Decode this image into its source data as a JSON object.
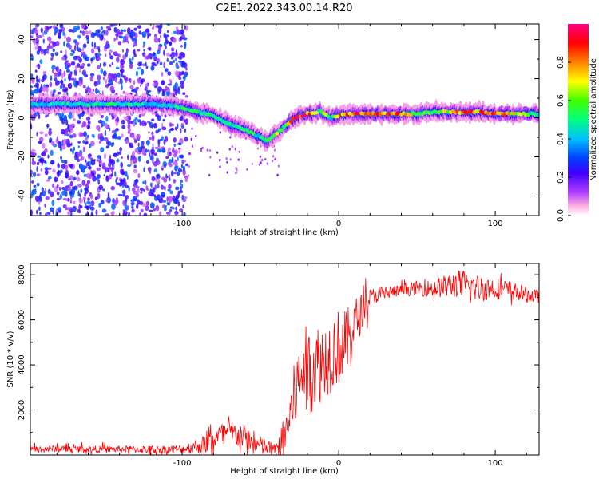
{
  "title": "C2E1.2022.343.00.14.R20",
  "chart_data": [
    {
      "type": "heatmap",
      "xlabel": "Height of straight line (km)",
      "ylabel": "Frequency (Hz)",
      "xlim": [
        -197,
        128
      ],
      "ylim": [
        -50,
        48
      ],
      "xticks": [
        -100,
        0,
        100
      ],
      "yticks": [
        -40,
        -20,
        0,
        20,
        40
      ],
      "grid": false,
      "colorbar": {
        "label": "Normalized spectral amplitude",
        "range": [
          0,
          1
        ],
        "ticks": [
          0.0,
          0.2,
          0.4,
          0.6,
          0.8
        ],
        "tick_labels": [
          "0.0",
          "0.2",
          "0.4",
          "0.6",
          "0.8"
        ],
        "colormap": [
          "#ffffff",
          "#ff80c0",
          "#8000ff",
          "#0000ff",
          "#00c0ff",
          "#00ff80",
          "#80ff00",
          "#ffff00",
          "#ff8000",
          "#ff0000",
          "#ff0080"
        ]
      },
      "ridge": {
        "x": [
          -197,
          -180,
          -160,
          -140,
          -120,
          -105,
          -100,
          -90,
          -80,
          -70,
          -60,
          -50,
          -45,
          -40,
          -35,
          -30,
          -25,
          -20,
          -15,
          -12,
          -10,
          -5,
          0,
          5,
          10,
          20,
          30,
          40,
          50,
          60,
          70,
          80,
          90,
          100,
          110,
          128
        ],
        "y": [
          7,
          7,
          7,
          7,
          7,
          6,
          5,
          3,
          1,
          -3,
          -6,
          -10,
          -12,
          -8,
          -5,
          -1,
          1,
          2,
          2,
          4,
          2,
          0,
          1,
          2,
          2,
          2,
          2,
          2,
          2,
          3,
          3,
          3,
          3,
          2,
          2,
          2
        ],
        "amplitude": [
          0.45,
          0.45,
          0.5,
          0.5,
          0.45,
          0.45,
          0.55,
          0.55,
          0.55,
          0.5,
          0.55,
          0.5,
          0.6,
          0.8,
          0.55,
          0.9,
          0.9,
          0.95,
          0.85,
          0.55,
          0.85,
          0.5,
          0.85,
          0.9,
          0.9,
          0.9,
          0.9,
          0.85,
          0.65,
          0.6,
          0.7,
          0.85,
          0.85,
          0.9,
          0.8,
          0.5
        ]
      },
      "noise_region": {
        "x_range": [
          -197,
          -97
        ],
        "amplitude": 0.3
      }
    },
    {
      "type": "line",
      "xlabel": "Height of straight line (km)",
      "ylabel": "SNR (10 * v/v)",
      "xlim": [
        -197,
        128
      ],
      "ylim": [
        0,
        8500
      ],
      "xticks": [
        -100,
        0,
        100
      ],
      "yticks": [
        2000,
        4000,
        6000,
        8000
      ],
      "grid": false,
      "series": [
        {
          "color": "#ff0000",
          "envelope": {
            "x": [
              -197,
              -180,
              -160,
              -140,
              -120,
              -100,
              -90,
              -85,
              -80,
              -75,
              -70,
              -65,
              -60,
              -55,
              -50,
              -45,
              -40,
              -35,
              -30,
              -27,
              -25,
              -22,
              -20,
              -15,
              -10,
              -5,
              0,
              5,
              10,
              15,
              20,
              30,
              40,
              50,
              60,
              70,
              75,
              80,
              90,
              100,
              110,
              120,
              128
            ],
            "y": [
              250,
              280,
              260,
              250,
              240,
              250,
              400,
              500,
              700,
              900,
              1000,
              900,
              800,
              500,
              400,
              300,
              200,
              800,
              2000,
              3000,
              3200,
              4000,
              3600,
              4000,
              4200,
              4500,
              4800,
              5000,
              5800,
              6400,
              7000,
              7200,
              7300,
              7400,
              7400,
              7500,
              7600,
              7500,
              7400,
              7400,
              7300,
              7100,
              7000
            ]
          },
          "noise_amplitude": {
            "x": [
              -197,
              -150,
              -100,
              -80,
              -60,
              -40,
              -30,
              -20,
              -10,
              0,
              10,
              20,
              40,
              60,
              80,
              100,
              128
            ],
            "y": [
              150,
              150,
              200,
              500,
              600,
              300,
              1500,
              2000,
              1800,
              1700,
              1200,
              400,
              250,
              400,
              700,
              500,
              300
            ]
          }
        }
      ]
    }
  ]
}
